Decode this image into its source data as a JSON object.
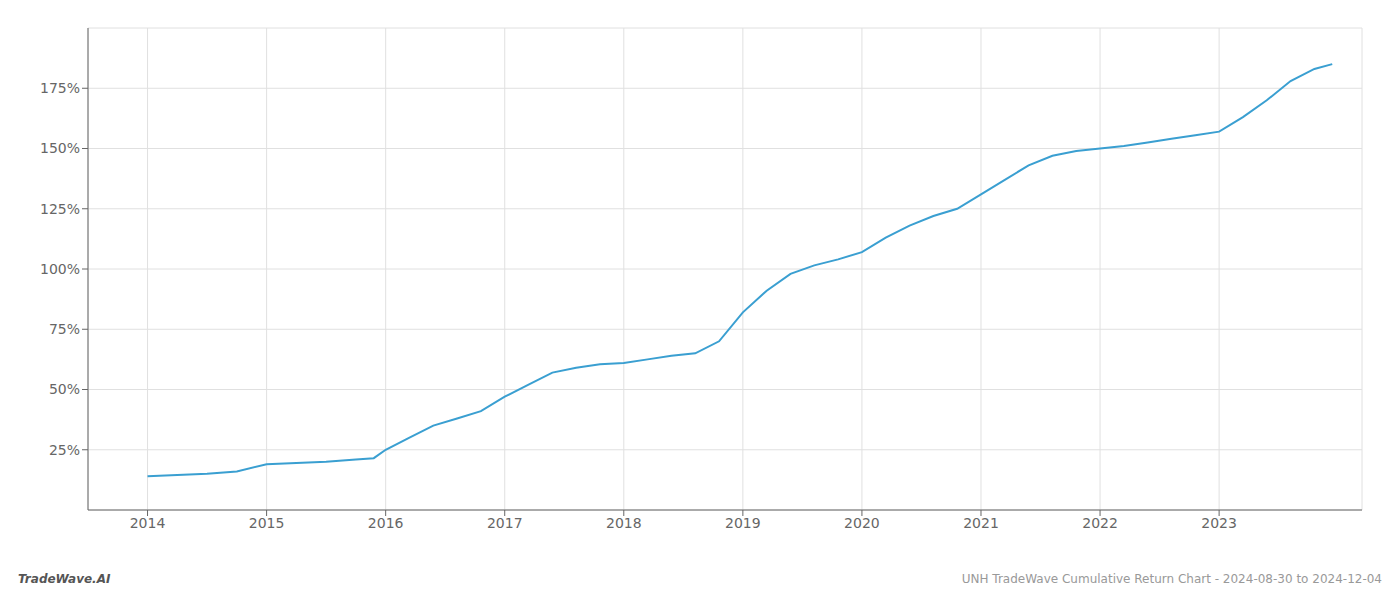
{
  "chart_data": {
    "type": "line",
    "x": [
      2014.0,
      2014.25,
      2014.5,
      2014.75,
      2015.0,
      2015.25,
      2015.5,
      2015.75,
      2015.9,
      2016.0,
      2016.2,
      2016.4,
      2016.6,
      2016.8,
      2017.0,
      2017.2,
      2017.4,
      2017.6,
      2017.8,
      2018.0,
      2018.2,
      2018.4,
      2018.6,
      2018.8,
      2019.0,
      2019.2,
      2019.4,
      2019.6,
      2019.8,
      2020.0,
      2020.2,
      2020.4,
      2020.6,
      2020.8,
      2021.0,
      2021.2,
      2021.4,
      2021.6,
      2021.8,
      2022.0,
      2022.2,
      2022.4,
      2022.6,
      2022.8,
      2023.0,
      2023.2,
      2023.4,
      2023.6,
      2023.8,
      2023.95
    ],
    "values": [
      14.0,
      14.5,
      15.0,
      16.0,
      19.0,
      19.5,
      20.0,
      21.0,
      21.5,
      25.0,
      30.0,
      35.0,
      38.0,
      41.0,
      47.0,
      52.0,
      57.0,
      59.0,
      60.5,
      61.0,
      62.5,
      64.0,
      65.0,
      70.0,
      82.0,
      91.0,
      98.0,
      101.5,
      104.0,
      107.0,
      113.0,
      118.0,
      122.0,
      125.0,
      131.0,
      137.0,
      143.0,
      147.0,
      149.0,
      150.0,
      151.0,
      152.5,
      154.0,
      155.5,
      157.0,
      163.0,
      170.0,
      178.0,
      183.0,
      185.0
    ],
    "color": "#3a9fd1",
    "xlim": [
      2013.5,
      2024.2
    ],
    "xticks": [
      2014,
      2015,
      2016,
      2017,
      2018,
      2019,
      2020,
      2021,
      2022,
      2023
    ],
    "ylim": [
      0,
      200
    ],
    "yticks": [
      {
        "value": 25,
        "label": "25%"
      },
      {
        "value": 50,
        "label": "50%"
      },
      {
        "value": 75,
        "label": "75%"
      },
      {
        "value": 100,
        "label": "100%"
      },
      {
        "value": 125,
        "label": "125%"
      },
      {
        "value": 150,
        "label": "150%"
      },
      {
        "value": 175,
        "label": "175%"
      }
    ],
    "grid": true,
    "annotations": [
      "TradeWave.AI",
      "UNH TradeWave Cumulative Return Chart - 2024-08-30 to 2024-12-04"
    ]
  }
}
